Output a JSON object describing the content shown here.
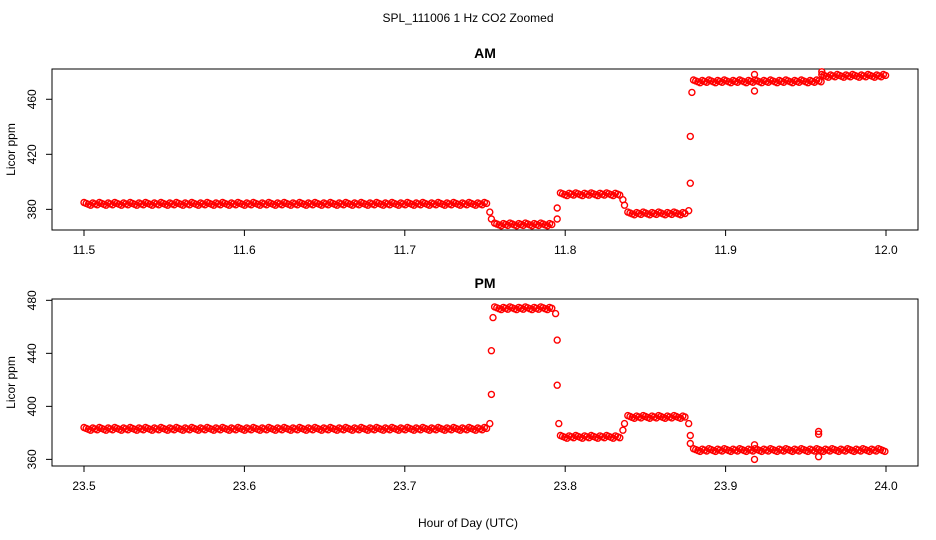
{
  "title": "SPL_111006  1 Hz CO2 Zoomed",
  "xlabel": "Hour of Day (UTC)",
  "marker_color": "#ff0000",
  "chart_data": [
    {
      "type": "scatter",
      "title": "AM",
      "ylabel": "Licor ppm",
      "xlim": [
        11.5,
        12.0
      ],
      "ylim": [
        365,
        482
      ],
      "xticks": [
        "11.5",
        "11.6",
        "11.7",
        "11.8",
        "11.9",
        "12.0"
      ],
      "yticks": [
        "380",
        "420",
        "460"
      ],
      "grid": false,
      "series": [
        {
          "segments": [
            {
              "x0": 11.5,
              "x1": 11.752,
              "y": 384
            },
            {
              "x0": 11.756,
              "x1": 11.793,
              "y": 369
            },
            {
              "x0": 11.797,
              "x1": 11.835,
              "y": 391
            },
            {
              "x0": 11.839,
              "x1": 11.876,
              "y": 377
            },
            {
              "x0": 11.88,
              "x1": 11.96,
              "y": 473
            },
            {
              "x0": 11.96,
              "x1": 12.0,
              "y": 477
            }
          ],
          "points": [
            {
              "x": 11.753,
              "y": 378
            },
            {
              "x": 11.754,
              "y": 373
            },
            {
              "x": 11.795,
              "y": 373
            },
            {
              "x": 11.795,
              "y": 381
            },
            {
              "x": 11.836,
              "y": 387
            },
            {
              "x": 11.837,
              "y": 383
            },
            {
              "x": 11.877,
              "y": 379
            },
            {
              "x": 11.878,
              "y": 399
            },
            {
              "x": 11.878,
              "y": 433
            },
            {
              "x": 11.879,
              "y": 465
            },
            {
              "x": 11.918,
              "y": 466
            },
            {
              "x": 11.918,
              "y": 478
            },
            {
              "x": 11.96,
              "y": 480
            }
          ]
        }
      ]
    },
    {
      "type": "scatter",
      "title": "PM",
      "ylabel": "Licor ppm",
      "xlim": [
        23.5,
        24.0
      ],
      "ylim": [
        355,
        481
      ],
      "xticks": [
        "23.5",
        "23.6",
        "23.7",
        "23.8",
        "23.9",
        "24.0"
      ],
      "yticks": [
        "360",
        "400",
        "440",
        "480"
      ],
      "grid": false,
      "series": [
        {
          "segments": [
            {
              "x0": 23.5,
              "x1": 23.752,
              "y": 383
            },
            {
              "x0": 23.756,
              "x1": 23.793,
              "y": 474
            },
            {
              "x0": 23.797,
              "x1": 23.835,
              "y": 377
            },
            {
              "x0": 23.839,
              "x1": 23.876,
              "y": 392
            },
            {
              "x0": 23.88,
              "x1": 24.0,
              "y": 367
            }
          ],
          "points": [
            {
              "x": 23.753,
              "y": 387
            },
            {
              "x": 23.754,
              "y": 409
            },
            {
              "x": 23.754,
              "y": 442
            },
            {
              "x": 23.755,
              "y": 467
            },
            {
              "x": 23.794,
              "y": 470
            },
            {
              "x": 23.795,
              "y": 450
            },
            {
              "x": 23.795,
              "y": 416
            },
            {
              "x": 23.796,
              "y": 387
            },
            {
              "x": 23.836,
              "y": 382
            },
            {
              "x": 23.837,
              "y": 387
            },
            {
              "x": 23.877,
              "y": 387
            },
            {
              "x": 23.878,
              "y": 378
            },
            {
              "x": 23.878,
              "y": 372
            },
            {
              "x": 23.918,
              "y": 360
            },
            {
              "x": 23.918,
              "y": 371
            },
            {
              "x": 23.958,
              "y": 381
            },
            {
              "x": 23.958,
              "y": 379
            },
            {
              "x": 23.958,
              "y": 362
            }
          ]
        }
      ]
    }
  ]
}
